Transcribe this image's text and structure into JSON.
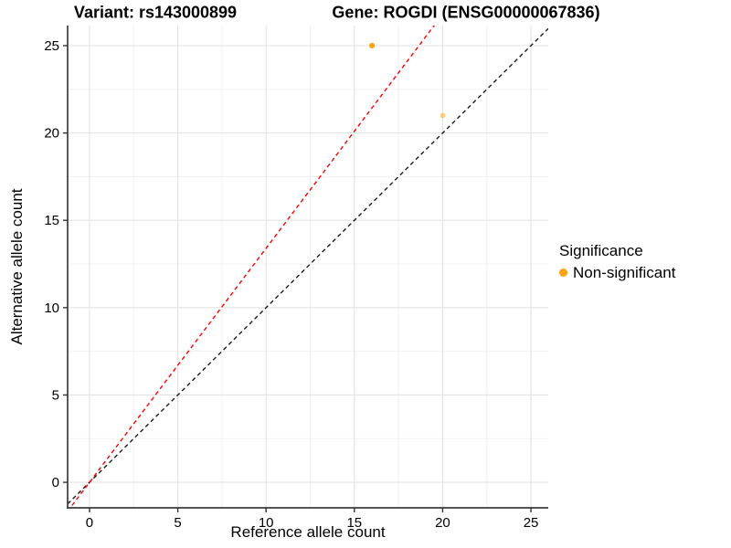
{
  "figure": {
    "title_variant": "Variant: rs143000899",
    "title_gene": "Gene: ROGDI (ENSG00000067836)"
  },
  "chart_data": {
    "type": "scatter",
    "title": "Variant: rs143000899 — Gene: ROGDI (ENSG00000067836)",
    "xlabel": "Reference allele count",
    "ylabel": "Alternative allele count",
    "xlim": [
      -1.24,
      25.98
    ],
    "ylim": [
      -1.46,
      26.15
    ],
    "x_ticks": [
      0,
      5,
      10,
      15,
      20,
      25
    ],
    "y_ticks": [
      0,
      5,
      10,
      15,
      20,
      25
    ],
    "x_minor_ticks": [
      2.5,
      7.5,
      12.5,
      17.5,
      22.5
    ],
    "y_minor_ticks": [
      2.5,
      7.5,
      12.5,
      17.5,
      22.5
    ],
    "grid": "major+minor",
    "grid_major_color": "#E3E3E3",
    "grid_minor_color": "#F0F0F0",
    "axis_line_color": "#3C3C3C",
    "points": [
      {
        "x": 16,
        "y": 25,
        "series": "Non-significant",
        "color": "#FFA410",
        "opacity": 1,
        "r": 3.1
      },
      {
        "x": 20,
        "y": 21,
        "series": "Non-significant",
        "color": "#FFA410",
        "opacity": 0.5,
        "r": 3.0
      }
    ],
    "lines": [
      {
        "name": "identity",
        "slope": 1.0,
        "intercept": 0,
        "color": "#1A1A1A",
        "style": "dashed"
      },
      {
        "name": "expected-ratio",
        "slope": 1.34,
        "intercept": 0,
        "color": "#FF0000",
        "style": "dashed"
      }
    ],
    "legend": {
      "title": "Significance",
      "position": "right-middle",
      "items": [
        {
          "label": "Non-significant",
          "color": "#FFA410"
        }
      ]
    }
  }
}
